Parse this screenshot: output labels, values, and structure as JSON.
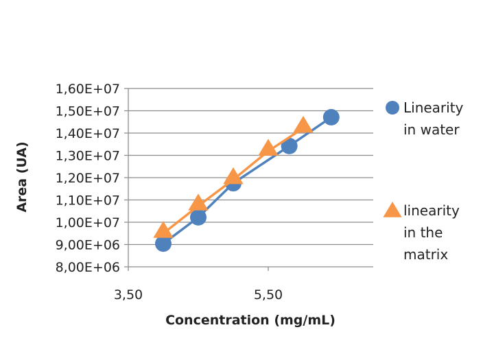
{
  "chart_data": {
    "type": "scatter",
    "title": "",
    "xlabel": "Concentration (mg/mL)",
    "ylabel": "Area (UA)",
    "xlim": [
      3.5,
      7.0
    ],
    "ylim": [
      8000000,
      16000000
    ],
    "x_ticks": [
      3.5,
      5.5
    ],
    "x_tick_labels": [
      "3,50",
      "5,50"
    ],
    "y_ticks": [
      8000000,
      9000000,
      10000000,
      11000000,
      12000000,
      13000000,
      14000000,
      15000000,
      16000000
    ],
    "y_tick_labels": [
      "8,00E+06",
      "9,00E+06",
      "1,00E+07",
      "1,10E+07",
      "1,20E+07",
      "1,30E+07",
      "1,40E+07",
      "1,50E+07",
      "1,60E+07"
    ],
    "grid": "horizontal",
    "legend_position": "right",
    "series": [
      {
        "name": "Linearity in water",
        "legend_lines": [
          "Linearity",
          "in water"
        ],
        "marker": "circle",
        "color": "#4F81BD",
        "x": [
          4.0,
          4.5,
          5.0,
          5.8,
          6.4
        ],
        "y": [
          9040000,
          10220000,
          11750000,
          13420000,
          14710000
        ]
      },
      {
        "name": "linearity in the matrix",
        "legend_lines": [
          "linearity",
          "in the",
          "matrix"
        ],
        "marker": "triangle",
        "color": "#F79646",
        "x": [
          4.0,
          4.5,
          5.0,
          5.5,
          6.0
        ],
        "y": [
          9500000,
          10730000,
          11910000,
          13190000,
          14220000
        ]
      }
    ]
  }
}
